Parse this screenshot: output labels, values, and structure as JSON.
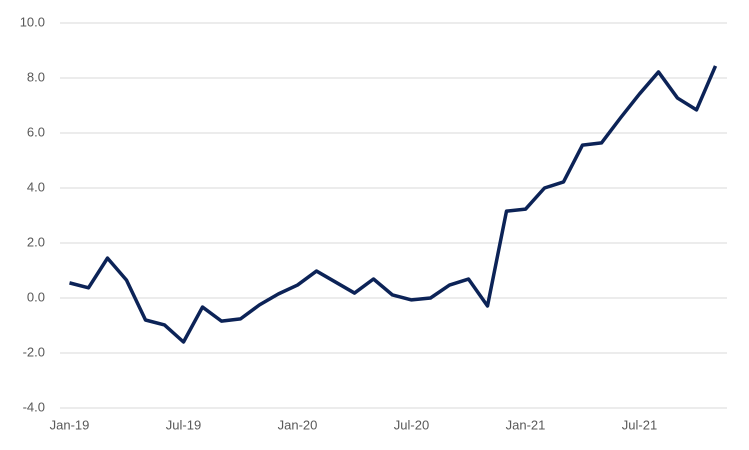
{
  "chart_data": {
    "type": "line",
    "categories": [
      "Jan-19",
      null,
      null,
      null,
      null,
      null,
      "Jul-19",
      null,
      null,
      null,
      null,
      null,
      "Jan-20",
      null,
      null,
      null,
      null,
      null,
      "Jul-20",
      null,
      null,
      null,
      null,
      null,
      "Jan-21",
      null,
      null,
      null,
      null,
      null,
      "Jul-21",
      null,
      null,
      null,
      null
    ],
    "series": [
      {
        "color": "#0c2357",
        "values": [
          0.55,
          0.37,
          1.45,
          0.65,
          -0.8,
          -0.98,
          -1.6,
          -0.33,
          -0.84,
          -0.76,
          -0.25,
          0.15,
          0.47,
          0.98,
          0.58,
          0.18,
          0.69,
          0.11,
          -0.07,
          0.0,
          0.47,
          0.69,
          -0.29,
          3.16,
          3.23,
          4.0,
          4.22,
          5.56,
          5.64,
          6.55,
          7.42,
          8.22,
          7.27,
          6.84,
          8.44
        ]
      }
    ],
    "ylim": [
      -4,
      10
    ],
    "yticks": [
      {
        "value": -4,
        "label": "-4.0"
      },
      {
        "value": -2,
        "label": "-2.0"
      },
      {
        "value": 0,
        "label": "0.0"
      },
      {
        "value": 2,
        "label": "2.0"
      },
      {
        "value": 4,
        "label": "4.0"
      },
      {
        "value": 6,
        "label": "6.0"
      },
      {
        "value": 8,
        "label": "8.0"
      },
      {
        "value": 10,
        "label": "10.0"
      }
    ],
    "grid": true
  }
}
